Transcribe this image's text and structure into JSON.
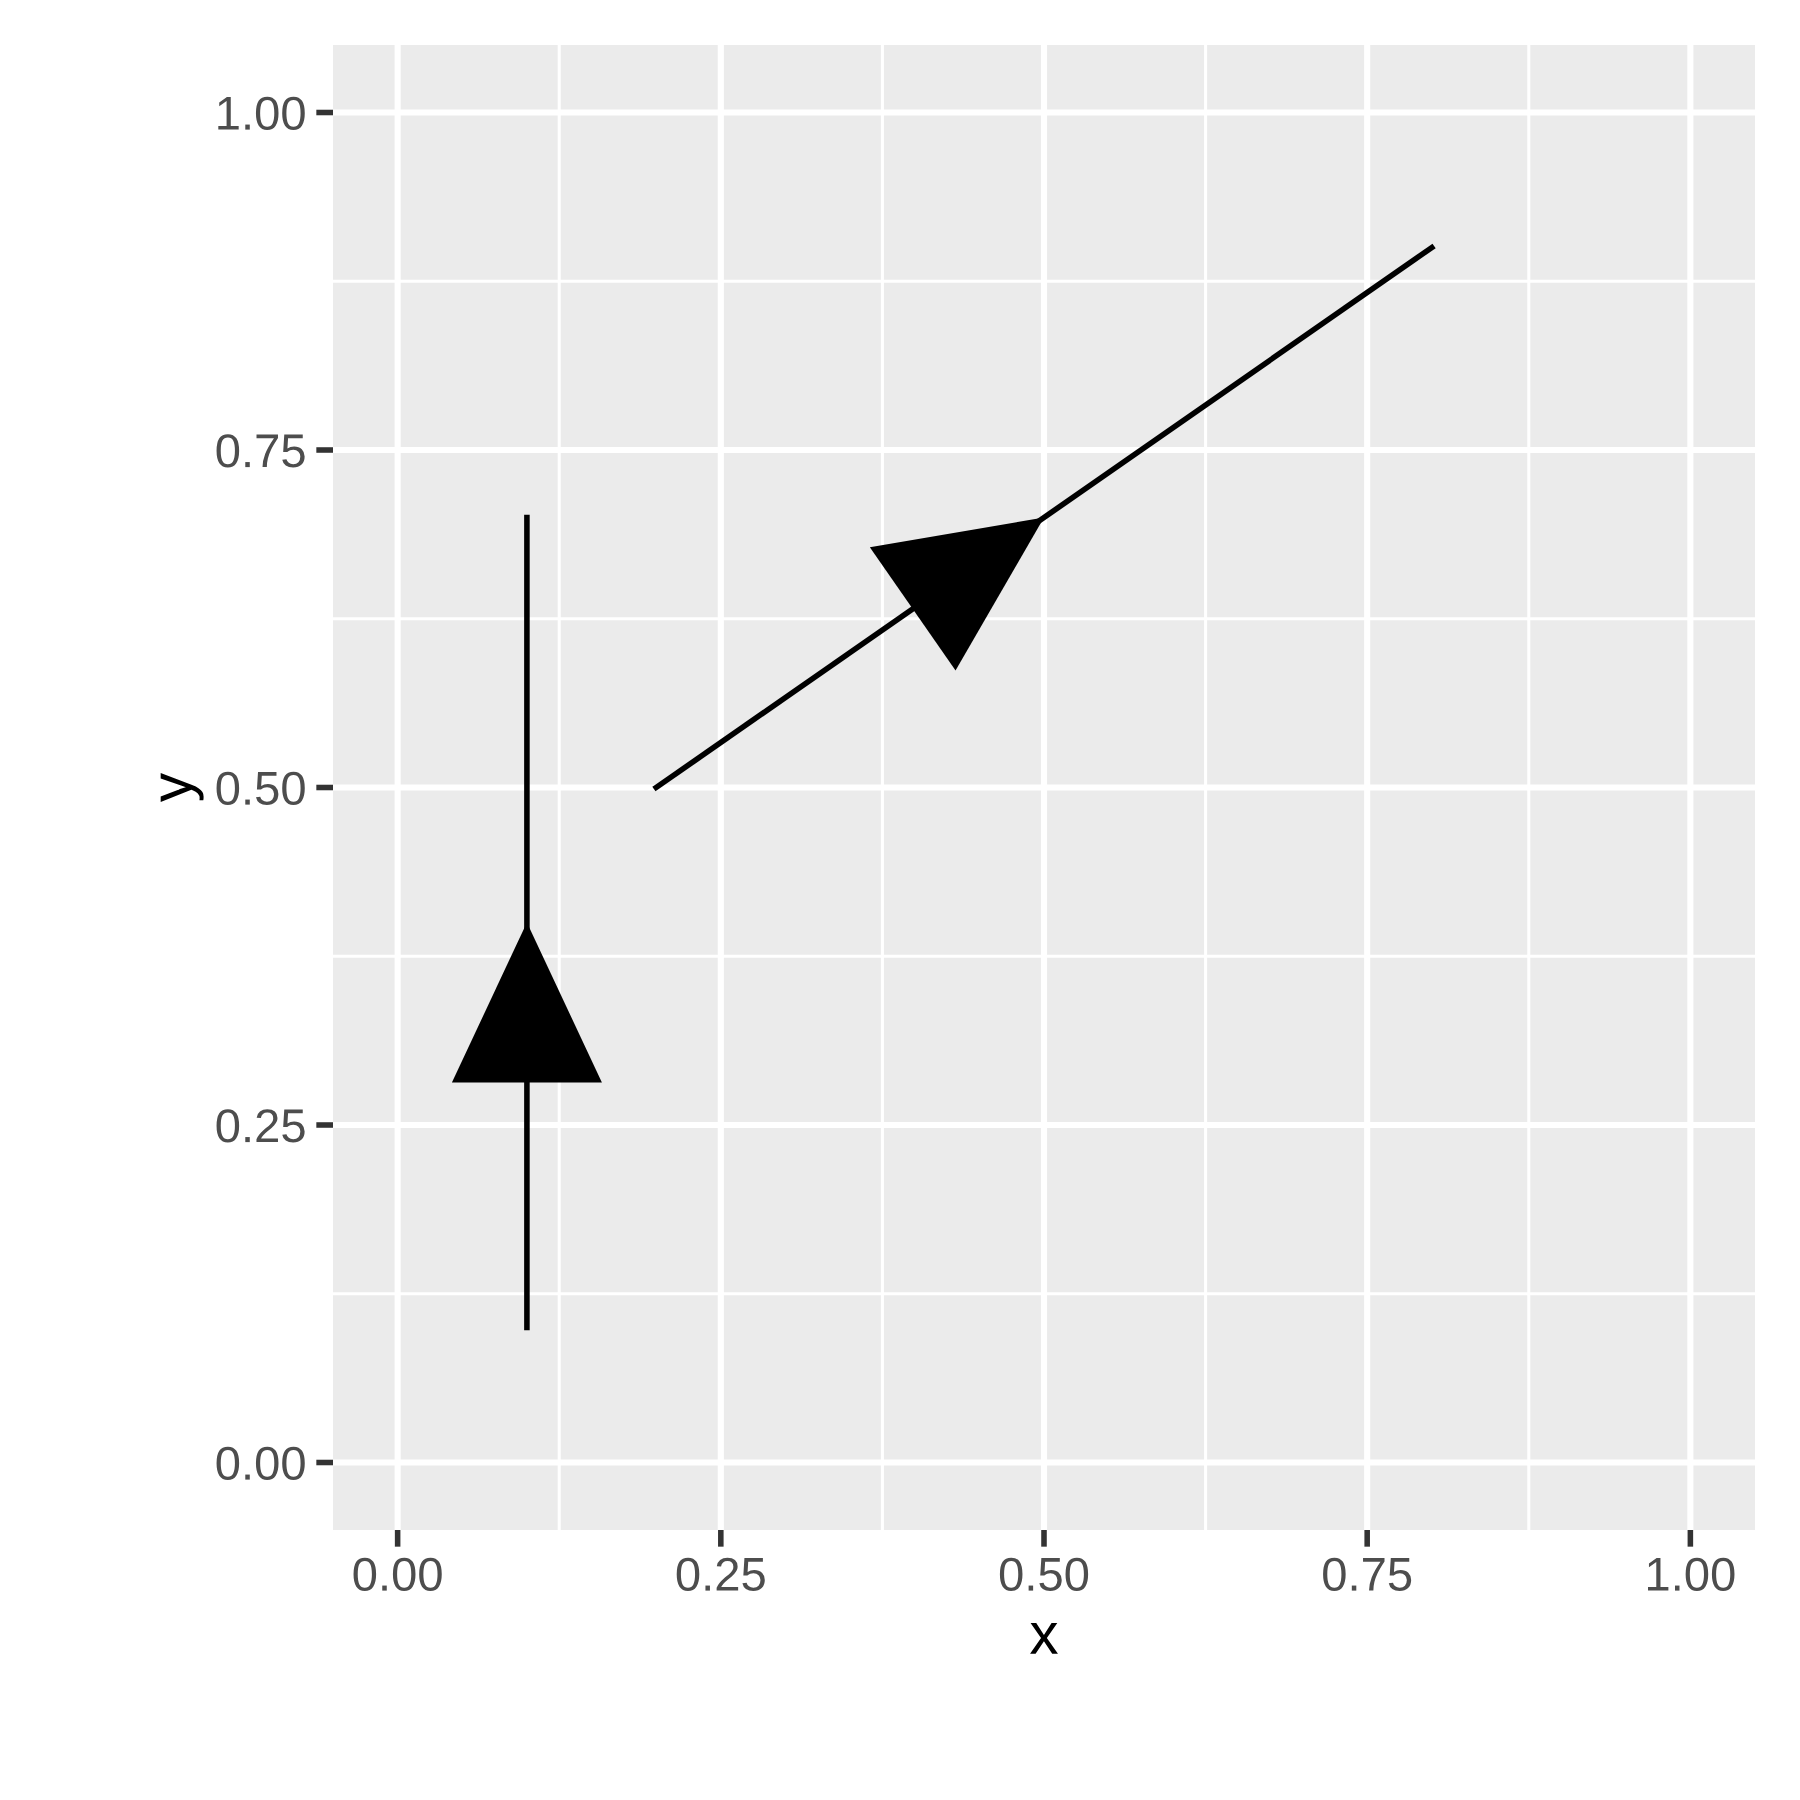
{
  "chart_data": {
    "type": "line",
    "xlabel": "x",
    "ylabel": "y",
    "series": [
      {
        "color": "#000000",
        "x": [
          0.1,
          0.1,
          0.1
        ],
        "values": [
          0.1,
          0.4,
          0.7
        ]
      },
      {
        "color": "#000000",
        "x": [
          0.2,
          0.5,
          0.8
        ],
        "values": [
          0.5,
          0.7,
          0.9
        ]
      }
    ],
    "xlim": [
      -0.05,
      1.05
    ],
    "ylim": [
      -0.05,
      1.05
    ],
    "xticks": [
      {
        "value": 0,
        "label": "0.00"
      },
      0.25,
      {
        "value": 0.5,
        "label": "0.50"
      },
      0.75,
      {
        "value": 1,
        "label": "1.00"
      }
    ],
    "yticks": [
      {
        "value": 0,
        "label": "0.00"
      },
      0.25,
      {
        "value": 0.5,
        "label": "0.50"
      },
      0.75,
      {
        "value": 1,
        "label": "1.00"
      }
    ],
    "grid": true,
    "line_style": "solid"
  }
}
